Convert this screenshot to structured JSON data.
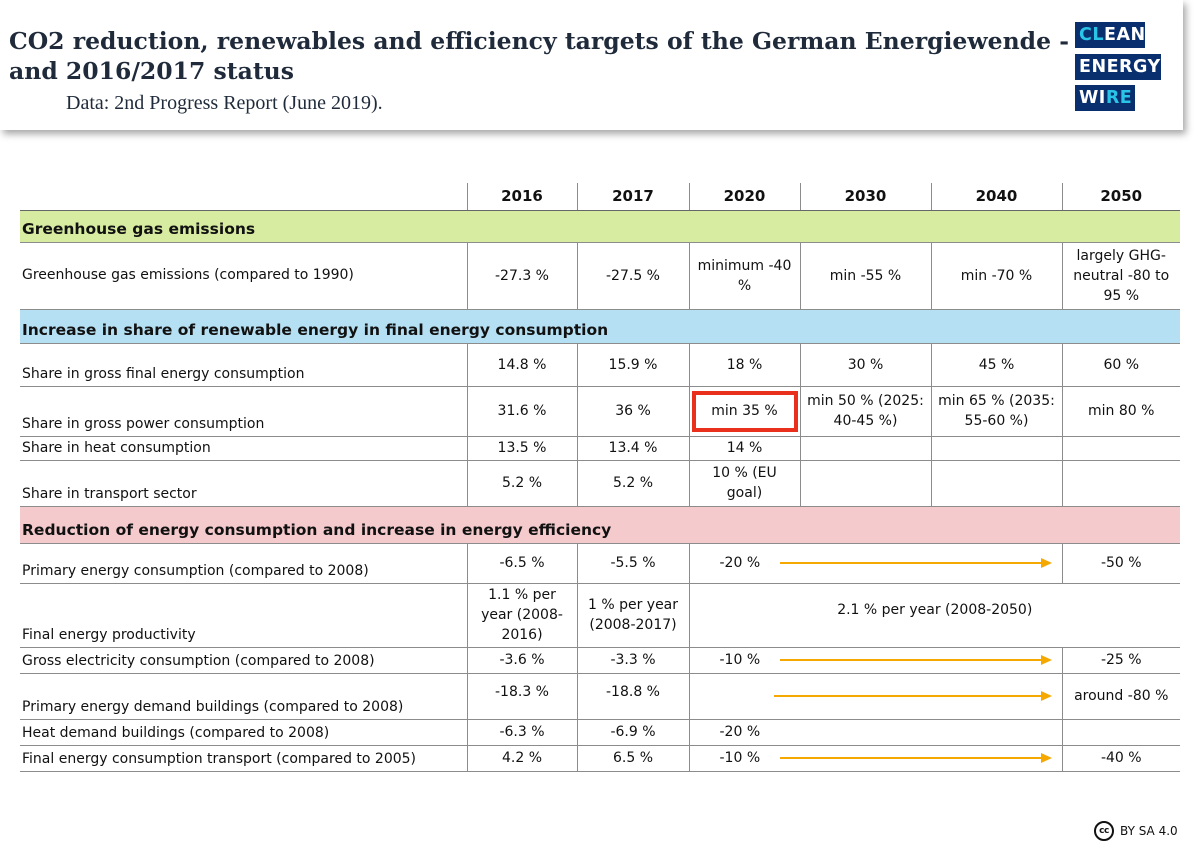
{
  "header": {
    "title": "CO2 reduction, renewables and efficiency targets of the German Energiewende - and 2016/2017 status",
    "subtitle": "Data: 2nd Progress Report (June 2019).",
    "logo": {
      "line1a": "CL",
      "line1b": "EAN",
      "line2": "ENERGY",
      "line3a": "WI",
      "line3b": "RE"
    }
  },
  "table": {
    "years": [
      "2016",
      "2017",
      "2020",
      "2030",
      "2040",
      "2050"
    ],
    "sections": {
      "ghg": "Greenhouse gas emissions",
      "renewables": "Increase in share of renewable energy in final energy consumption",
      "efficiency": "Reduction of energy consumption and increase in energy efficiency"
    },
    "rows": {
      "ghg": {
        "label": "Greenhouse gas emissions (compared to 1990)",
        "v2016": "-27.3 %",
        "v2017": "-27.5 %",
        "v2020": "minimum -40 %",
        "v2030": "min -55 %",
        "v2040": "min -70 %",
        "v2050": "largely GHG-neutral -80 to 95 %"
      },
      "gross_final": {
        "label": "Share in gross final energy consumption",
        "v2016": "14.8 %",
        "v2017": "15.9 %",
        "v2020": "18 %",
        "v2030": "30 %",
        "v2040": "45 %",
        "v2050": "60 %"
      },
      "gross_power": {
        "label": "Share in gross power consumption",
        "v2016": "31.6 %",
        "v2017": "36 %",
        "v2020": "min 35 %",
        "v2030": "min 50 % (2025: 40-45 %)",
        "v2040": "min 65 % (2035: 55-60 %)",
        "v2050": "min 80 %"
      },
      "heat": {
        "label": "Share in heat consumption",
        "v2016": "13.5 %",
        "v2017": "13.4 %",
        "v2020": "14 %"
      },
      "transport": {
        "label": "Share in transport sector",
        "v2016": "5.2 %",
        "v2017": "5.2 %",
        "v2020": "10 % (EU goal)"
      },
      "primary": {
        "label": "Primary energy consumption (compared to 2008)",
        "v2016": "-6.5 %",
        "v2017": "-5.5 %",
        "v2020": "-20 %",
        "v2050": "-50 %"
      },
      "productivity": {
        "label": "Final energy productivity",
        "v2016": "1.1 % per year (2008-2016)",
        "v2017": "1 % per year (2008-2017)",
        "span": "2.1 % per year (2008-2050)"
      },
      "electricity": {
        "label": "Gross electricity consumption (compared to 2008)",
        "v2016": "-3.6 %",
        "v2017": "-3.3 %",
        "v2020": "-10 %",
        "v2050": "-25 %"
      },
      "buildings_primary": {
        "label": "Primary energy demand buildings (compared to 2008)",
        "v2016": "-18.3 %",
        "v2017": "-18.8 %",
        "v2050": "around -80 %"
      },
      "buildings_heat": {
        "label": "Heat demand buildings (compared to 2008)",
        "v2016": "-6.3 %",
        "v2017": "-6.9 %",
        "v2020": "-20 %"
      },
      "transport_final": {
        "label": "Final energy consumption transport (compared to 2005)",
        "v2016": "4.2 %",
        "v2017": "6.5 %",
        "v2020": "-10 %",
        "v2050": "-40 %"
      }
    }
  },
  "license": {
    "icon": "cc-icon",
    "text": "BY SA 4.0"
  },
  "colors": {
    "green": "#d7eca1",
    "blue": "#b5dff3",
    "pink": "#f4cacc",
    "arrow": "#f5a800",
    "highlight": "#e8301c",
    "logo_bg": "#0a2f6e",
    "logo_accent": "#29c4e8"
  }
}
